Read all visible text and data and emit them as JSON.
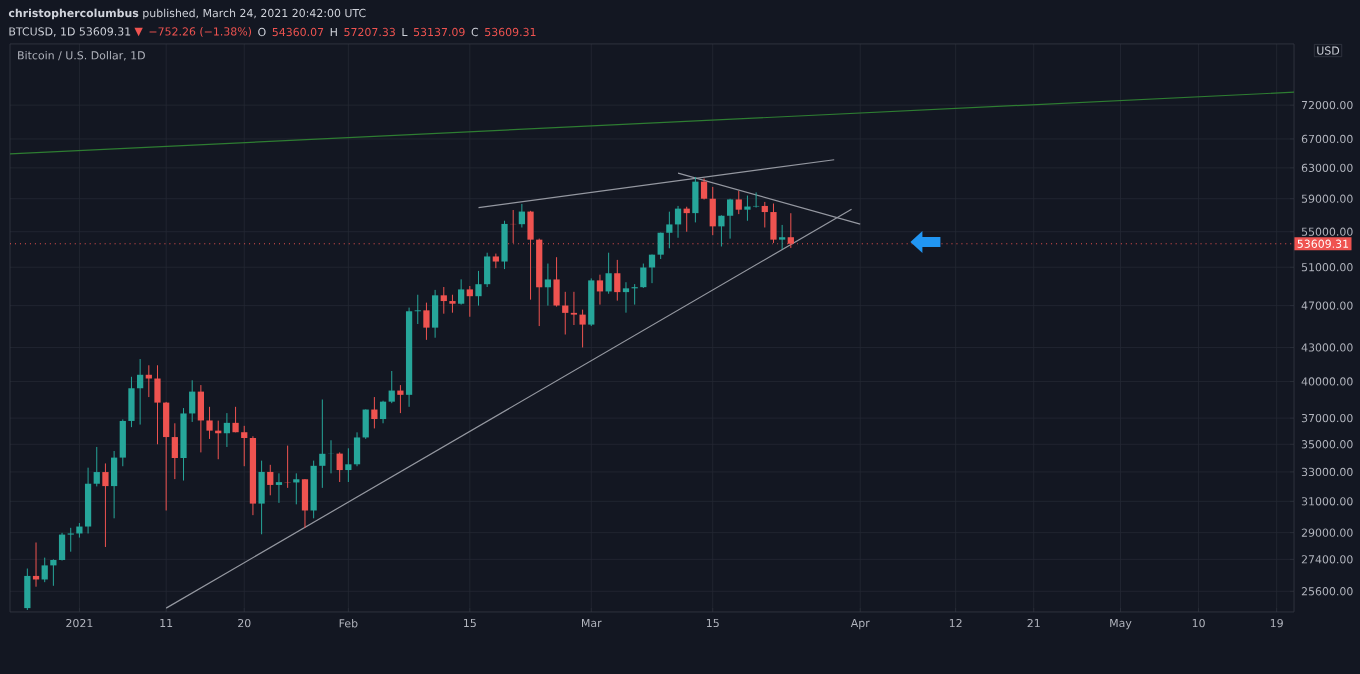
{
  "chart_data": {
    "type": "candlestick",
    "title": "Bitcoin / U.S. Dollar, 1D",
    "annotations": [
      "**christophercolumbus** published, March 24, 2021 20:42:00 UTC",
      "BTCUSD, 1D  53609.31",
      "▼",
      "−752.26 (−1.38%)",
      "O",
      "54360.07",
      "H",
      "57207.33",
      "L",
      "53137.09",
      "C",
      "53609.31",
      "USD"
    ],
    "log": true,
    "grid": true,
    "xlim": [
      "2020-12-24",
      "2021-05-21"
    ],
    "ylim": [
      24500,
      82000
    ],
    "xticks": [
      {
        "value": "2021-01-01",
        "label": "2021"
      },
      {
        "value": "2021-01-11",
        "label": "11"
      },
      {
        "value": "2021-01-20",
        "label": "20"
      },
      {
        "value": "2021-02-01",
        "label": "Feb"
      },
      {
        "value": "2021-02-15",
        "label": "15"
      },
      {
        "value": "2021-03-01",
        "label": "Mar"
      },
      {
        "value": "2021-03-15",
        "label": "15"
      },
      {
        "value": "2021-04-01",
        "label": "Apr"
      },
      {
        "value": "2021-04-12",
        "label": "12"
      },
      {
        "value": "2021-04-21",
        "label": "21"
      },
      {
        "value": "2021-05-01",
        "label": "May"
      },
      {
        "value": "2021-05-10",
        "label": "10"
      },
      {
        "value": "2021-05-19",
        "label": "19"
      }
    ],
    "yticks": [
      {
        "value": 25600,
        "label": "25600.00"
      },
      {
        "value": 27400,
        "label": "27400.00"
      },
      {
        "value": 29000,
        "label": "29000.00"
      },
      {
        "value": 31000,
        "label": "31000.00"
      },
      {
        "value": 33000,
        "label": "33000.00"
      },
      {
        "value": 35000,
        "label": "35000.00"
      },
      {
        "value": 37000,
        "label": "37000.00"
      },
      {
        "value": 40000,
        "label": "40000.00"
      },
      {
        "value": 43000,
        "label": "43000.00"
      },
      {
        "value": 47000,
        "label": "47000.00"
      },
      {
        "value": 51000,
        "label": "51000.00"
      },
      {
        "value": 55000,
        "label": "55000.00"
      },
      {
        "value": 59000,
        "label": "59000.00"
      },
      {
        "value": 63000,
        "label": "63000.00"
      },
      {
        "value": 67000,
        "label": "67000.00"
      },
      {
        "value": 72000,
        "label": "72000.00"
      }
    ],
    "x": [
      "2020-12-26",
      "2020-12-27",
      "2020-12-28",
      "2020-12-29",
      "2020-12-30",
      "2020-12-31",
      "2021-01-01",
      "2021-01-02",
      "2021-01-03",
      "2021-01-04",
      "2021-01-05",
      "2021-01-06",
      "2021-01-07",
      "2021-01-08",
      "2021-01-09",
      "2021-01-10",
      "2021-01-11",
      "2021-01-12",
      "2021-01-13",
      "2021-01-14",
      "2021-01-15",
      "2021-01-16",
      "2021-01-17",
      "2021-01-18",
      "2021-01-19",
      "2021-01-20",
      "2021-01-21",
      "2021-01-22",
      "2021-01-23",
      "2021-01-24",
      "2021-01-25",
      "2021-01-26",
      "2021-01-27",
      "2021-01-28",
      "2021-01-29",
      "2021-01-30",
      "2021-01-31",
      "2021-02-01",
      "2021-02-02",
      "2021-02-03",
      "2021-02-04",
      "2021-02-05",
      "2021-02-06",
      "2021-02-07",
      "2021-02-08",
      "2021-02-09",
      "2021-02-10",
      "2021-02-11",
      "2021-02-12",
      "2021-02-13",
      "2021-02-14",
      "2021-02-15",
      "2021-02-16",
      "2021-02-17",
      "2021-02-18",
      "2021-02-19",
      "2021-02-20",
      "2021-02-21",
      "2021-02-22",
      "2021-02-23",
      "2021-02-24",
      "2021-02-25",
      "2021-02-26",
      "2021-02-27",
      "2021-02-28",
      "2021-03-01",
      "2021-03-02",
      "2021-03-03",
      "2021-03-04",
      "2021-03-05",
      "2021-03-06",
      "2021-03-07",
      "2021-03-08",
      "2021-03-09",
      "2021-03-10",
      "2021-03-11",
      "2021-03-12",
      "2021-03-13",
      "2021-03-14",
      "2021-03-15",
      "2021-03-16",
      "2021-03-17",
      "2021-03-18",
      "2021-03-19",
      "2021-03-20",
      "2021-03-21",
      "2021-03-22",
      "2021-03-23",
      "2021-03-24"
    ],
    "ohlc": [
      [
        24700,
        26870,
        24600,
        26450
      ],
      [
        26450,
        28400,
        25850,
        26250
      ],
      [
        26250,
        27500,
        26100,
        27050
      ],
      [
        27050,
        27400,
        25900,
        27360
      ],
      [
        27360,
        28990,
        27330,
        28880
      ],
      [
        28880,
        29300,
        27850,
        28950
      ],
      [
        28950,
        29600,
        28700,
        29380
      ],
      [
        29380,
        33300,
        28950,
        32180
      ],
      [
        32180,
        34800,
        32000,
        32990
      ],
      [
        32990,
        33600,
        28130,
        32020
      ],
      [
        32020,
        34500,
        29900,
        34020
      ],
      [
        34020,
        36900,
        33400,
        36780
      ],
      [
        36780,
        40400,
        36300,
        39430
      ],
      [
        39430,
        41950,
        36500,
        40570
      ],
      [
        40570,
        41400,
        38700,
        40250
      ],
      [
        40250,
        41400,
        35000,
        38240
      ],
      [
        38240,
        38300,
        30400,
        35540
      ],
      [
        35540,
        36600,
        32500,
        33990
      ],
      [
        33990,
        37800,
        32400,
        37370
      ],
      [
        37370,
        40100,
        36700,
        39150
      ],
      [
        39150,
        39700,
        34400,
        36820
      ],
      [
        36820,
        37900,
        35400,
        36030
      ],
      [
        36030,
        36800,
        33900,
        35830
      ],
      [
        35830,
        37400,
        34800,
        36630
      ],
      [
        36630,
        37900,
        35900,
        35910
      ],
      [
        35910,
        36400,
        33400,
        35470
      ],
      [
        35470,
        35600,
        30100,
        30850
      ],
      [
        30850,
        33800,
        28900,
        33000
      ],
      [
        33000,
        33500,
        31400,
        32100
      ],
      [
        32100,
        32900,
        30900,
        32290
      ],
      [
        32290,
        34900,
        31900,
        32270
      ],
      [
        32270,
        32900,
        30800,
        32490
      ],
      [
        32490,
        32500,
        29300,
        30400
      ],
      [
        30400,
        33800,
        29900,
        33430
      ],
      [
        33430,
        38500,
        31900,
        34300
      ],
      [
        34300,
        35300,
        32900,
        34310
      ],
      [
        34310,
        34400,
        32300,
        33130
      ],
      [
        33130,
        34700,
        32300,
        33540
      ],
      [
        33540,
        35900,
        33400,
        35510
      ],
      [
        35510,
        37700,
        35400,
        37680
      ],
      [
        37680,
        38700,
        36200,
        36930
      ],
      [
        36930,
        38400,
        36600,
        38320
      ],
      [
        38320,
        40900,
        38200,
        39240
      ],
      [
        39240,
        39700,
        37400,
        38880
      ],
      [
        38880,
        46800,
        37900,
        46440
      ],
      [
        46440,
        48100,
        45200,
        46530
      ],
      [
        46530,
        47300,
        43700,
        44850
      ],
      [
        44850,
        48600,
        43900,
        48040
      ],
      [
        48040,
        48900,
        46200,
        47460
      ],
      [
        47460,
        48100,
        46300,
        47190
      ],
      [
        47190,
        49700,
        47100,
        48650
      ],
      [
        48650,
        49000,
        45900,
        47950
      ],
      [
        47950,
        50600,
        47000,
        49190
      ],
      [
        49190,
        52600,
        48900,
        52180
      ],
      [
        52180,
        52500,
        50900,
        51620
      ],
      [
        51620,
        56300,
        50800,
        55920
      ],
      [
        55920,
        57600,
        53700,
        55890
      ],
      [
        55890,
        58350,
        55500,
        57410
      ],
      [
        57410,
        57500,
        47600,
        54080
      ],
      [
        54080,
        54200,
        45000,
        48870
      ],
      [
        48870,
        51400,
        47000,
        49690
      ],
      [
        49690,
        52100,
        46900,
        47010
      ],
      [
        47010,
        48400,
        44200,
        46280
      ],
      [
        46280,
        48400,
        45100,
        46110
      ],
      [
        46110,
        46600,
        43000,
        45140
      ],
      [
        45140,
        49800,
        45000,
        49590
      ],
      [
        49590,
        50200,
        47100,
        48440
      ],
      [
        48440,
        52600,
        48200,
        50350
      ],
      [
        50350,
        51800,
        47500,
        48370
      ],
      [
        48370,
        49400,
        46300,
        48760
      ],
      [
        48760,
        49200,
        47100,
        48880
      ],
      [
        48880,
        51400,
        48800,
        50970
      ],
      [
        50970,
        52400,
        49300,
        52380
      ],
      [
        52380,
        54900,
        51900,
        54880
      ],
      [
        54880,
        57400,
        53100,
        55860
      ],
      [
        55860,
        58100,
        54300,
        57770
      ],
      [
        57770,
        58000,
        55000,
        57220
      ],
      [
        57220,
        61800,
        56100,
        61180
      ],
      [
        61180,
        61600,
        58900,
        59000
      ],
      [
        59000,
        60500,
        54600,
        55630
      ],
      [
        55630,
        56950,
        53300,
        56900
      ],
      [
        56900,
        59000,
        54200,
        58910
      ],
      [
        58910,
        60000,
        57100,
        57640
      ],
      [
        57640,
        59400,
        56300,
        58030
      ],
      [
        58030,
        59800,
        57900,
        58100
      ],
      [
        58100,
        58600,
        55500,
        57350
      ],
      [
        57350,
        58400,
        53700,
        54080
      ],
      [
        54080,
        55800,
        53000,
        54360
      ],
      [
        54360.07,
        57207.33,
        53137.09,
        53609.31
      ]
    ],
    "colors": [
      "#26a69a",
      "#ef5350",
      "#26a69a",
      "#26a69a",
      "#26a69a",
      "#26a69a",
      "#26a69a",
      "#26a69a",
      "#26a69a",
      "#ef5350",
      "#26a69a",
      "#26a69a",
      "#26a69a",
      "#26a69a",
      "#ef5350",
      "#ef5350",
      "#ef5350",
      "#ef5350",
      "#26a69a",
      "#26a69a",
      "#ef5350",
      "#ef5350",
      "#ef5350",
      "#26a69a",
      "#ef5350",
      "#ef5350",
      "#ef5350",
      "#26a69a",
      "#ef5350",
      "#26a69a",
      "#ef5350",
      "#26a69a",
      "#ef5350",
      "#26a69a",
      "#26a69a",
      "#26a69a",
      "#ef5350",
      "#26a69a",
      "#26a69a",
      "#26a69a",
      "#ef5350",
      "#26a69a",
      "#26a69a",
      "#ef5350",
      "#26a69a",
      "#26a69a",
      "#ef5350",
      "#26a69a",
      "#ef5350",
      "#ef5350",
      "#26a69a",
      "#ef5350",
      "#26a69a",
      "#26a69a",
      "#ef5350",
      "#26a69a",
      "#ef5350",
      "#26a69a",
      "#ef5350",
      "#ef5350",
      "#26a69a",
      "#ef5350",
      "#ef5350",
      "#ef5350",
      "#ef5350",
      "#26a69a",
      "#ef5350",
      "#26a69a",
      "#ef5350",
      "#26a69a",
      "#26a69a",
      "#26a69a",
      "#26a69a",
      "#26a69a",
      "#26a69a",
      "#26a69a",
      "#ef5350",
      "#26a69a",
      "#ef5350",
      "#ef5350",
      "#26a69a",
      "#26a69a",
      "#ef5350",
      "#26a69a",
      "#26a69a",
      "#ef5350",
      "#ef5350",
      "#26a69a",
      "#ef5350"
    ],
    "series": [
      {
        "type": "line",
        "color": "#9598a1",
        "x": [
          "2021-01-11",
          "2021-03-31"
        ],
        "values": [
          24700,
          57700
        ]
      },
      {
        "type": "line",
        "color": "#9598a1",
        "x": [
          "2021-02-16",
          "2021-03-29"
        ],
        "values": [
          57900,
          64100
        ]
      },
      {
        "type": "line",
        "color": "#9598a1",
        "x": [
          "2021-03-11",
          "2021-04-01"
        ],
        "values": [
          62300,
          55900
        ]
      },
      {
        "type": "line",
        "color": "#2e7d32",
        "x": [
          "2020-12-24",
          "2021-05-21"
        ],
        "values": [
          64900,
          74000
        ]
      }
    ],
    "ref_lines": [
      {
        "axis": "y",
        "value": 53609.31,
        "label": "53609.31",
        "color": "#ef5350",
        "line_style": "dotted"
      }
    ]
  }
}
